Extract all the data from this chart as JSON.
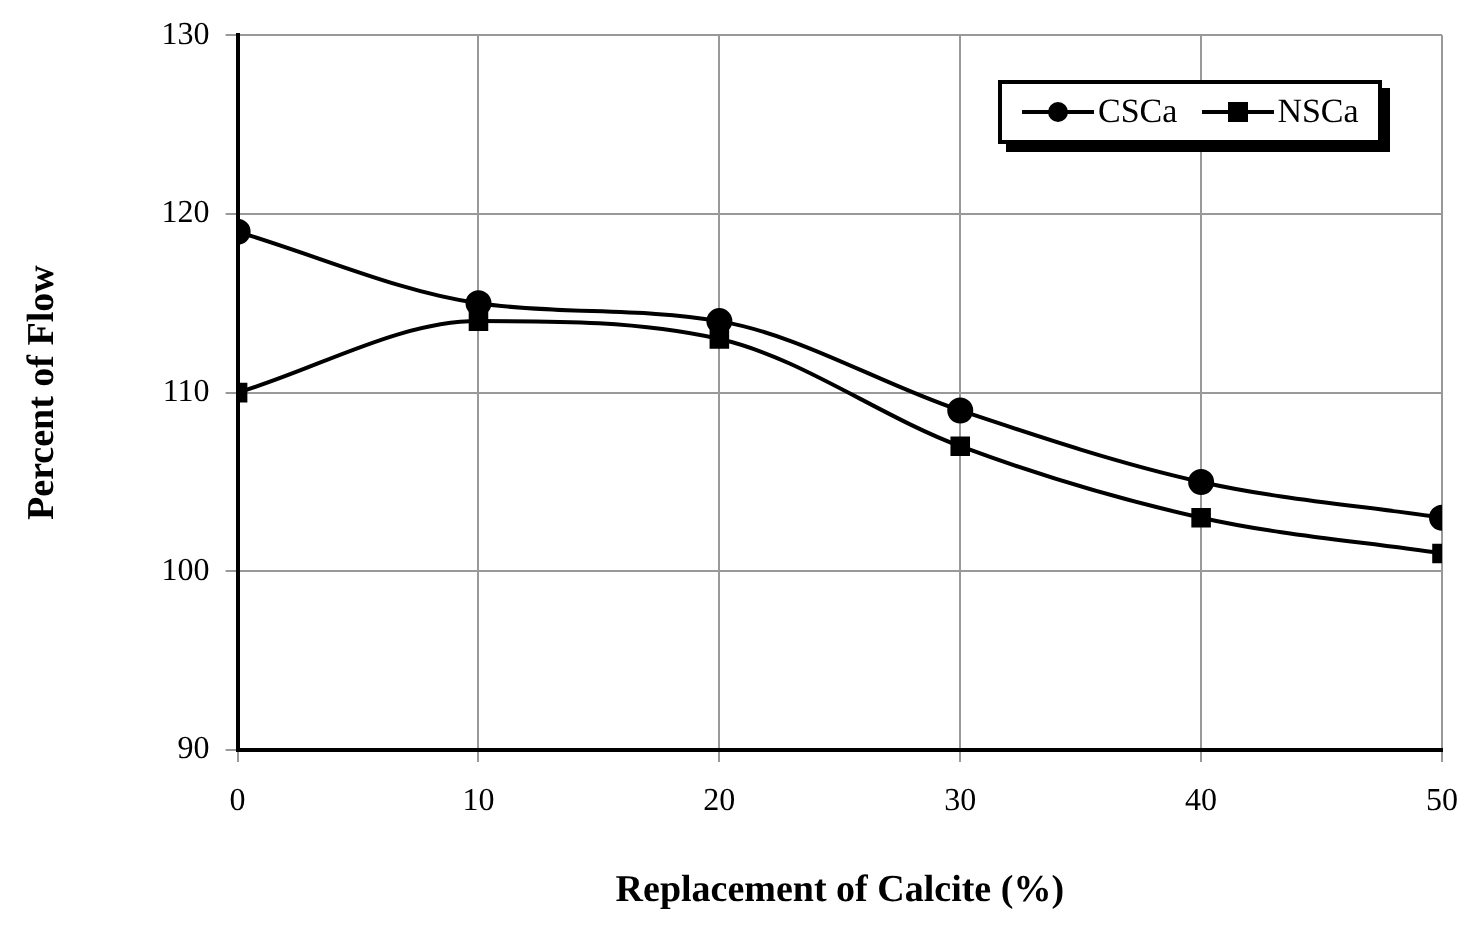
{
  "chart_data": {
    "type": "line",
    "xlabel": "Replacement of Calcite (%)",
    "ylabel": "Percent of Flow",
    "x": [
      0,
      10,
      20,
      30,
      40,
      50
    ],
    "series": [
      {
        "name": "CSCa",
        "color": "#000000",
        "marker": "circle",
        "values": [
          119,
          115,
          114,
          109,
          105,
          103
        ]
      },
      {
        "name": "NSCa",
        "color": "#000000",
        "marker": "square",
        "values": [
          110,
          114,
          113,
          107,
          103,
          101
        ]
      }
    ],
    "xlim": [
      0,
      50
    ],
    "xticks": [
      0,
      10,
      20,
      30,
      40,
      50
    ],
    "ylim": [
      90,
      130
    ],
    "yticks": [
      90,
      100,
      110,
      120,
      130
    ],
    "grid": true,
    "legend": "top right",
    "line_style": "solid"
  }
}
